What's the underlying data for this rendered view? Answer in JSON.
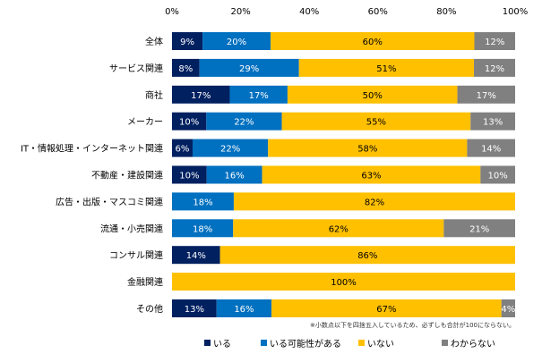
{
  "chart_data": {
    "type": "bar",
    "orientation": "horizontal",
    "stacked": true,
    "categories": [
      "全体",
      "サービス関連",
      "商社",
      "メーカー",
      "IT・情報処理・インターネット関連",
      "不動産・建設関連",
      "広告・出版・マスコミ関連",
      "流通・小売関連",
      "コンサル関連",
      "金融関連",
      "その他"
    ],
    "series": [
      {
        "name": "いる",
        "color": "#002060",
        "values": [
          9,
          8,
          17,
          10,
          6,
          10,
          0,
          0,
          14,
          0,
          13
        ]
      },
      {
        "name": "いる可能性がある",
        "color": "#0070C0",
        "values": [
          20,
          29,
          17,
          22,
          22,
          16,
          18,
          18,
          0,
          0,
          16
        ]
      },
      {
        "name": "いない",
        "color": "#FFC000",
        "values": [
          60,
          51,
          50,
          55,
          58,
          63,
          82,
          62,
          86,
          100,
          67
        ]
      },
      {
        "name": "わからない",
        "color": "#808080",
        "values": [
          12,
          12,
          17,
          13,
          14,
          10,
          0,
          21,
          0,
          0,
          4
        ]
      }
    ],
    "xlim": [
      0,
      100
    ],
    "xticks": [
      "0%",
      "20%",
      "40%",
      "60%",
      "80%",
      "100%"
    ],
    "legend_position": "bottom",
    "grid": false,
    "footnote": "※小数点以下を四捨五入しているため、必ずしも合計が100にならない。"
  }
}
